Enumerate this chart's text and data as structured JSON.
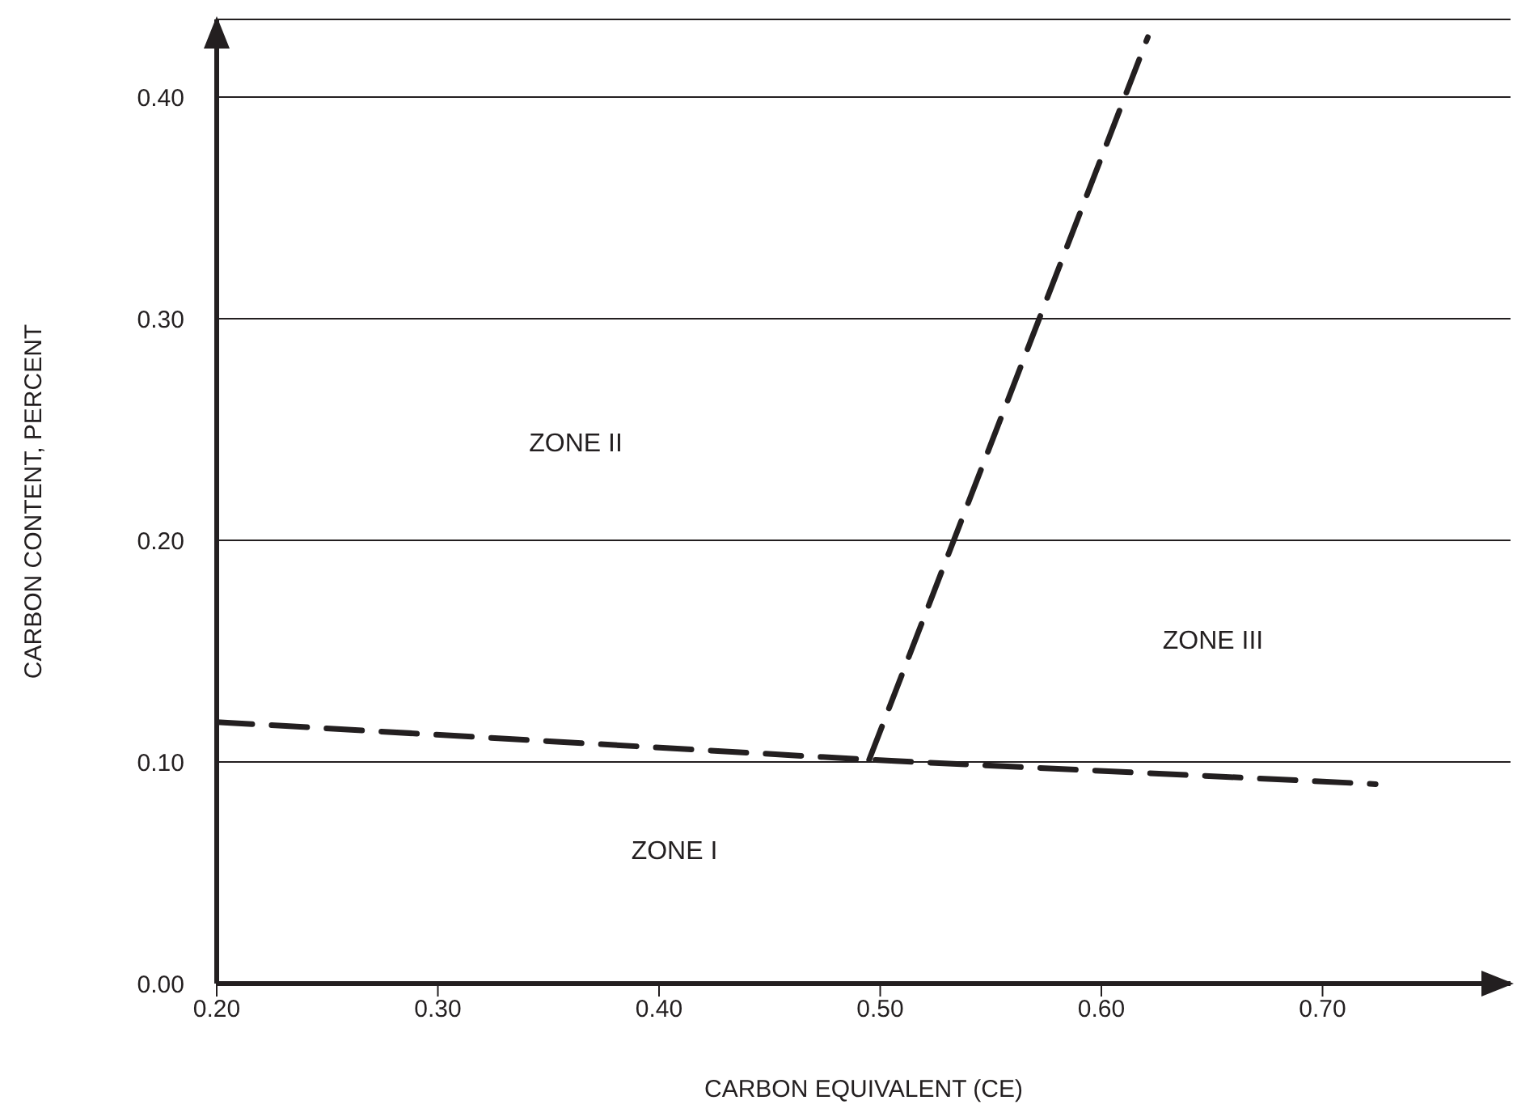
{
  "chart_data": {
    "type": "line",
    "xlabel": "CARBON EQUIVALENT (CE)",
    "ylabel": "CARBON CONTENT, PERCENT",
    "xlim": [
      0.2,
      0.785
    ],
    "ylim": [
      0,
      0.435
    ],
    "xticks": [
      {
        "value": 0.2,
        "label": "0.20"
      },
      {
        "value": 0.3,
        "label": "0.30"
      },
      {
        "value": 0.4,
        "label": "0.40"
      },
      {
        "value": 0.5,
        "label": "0.50"
      },
      {
        "value": 0.6,
        "label": "0.60"
      },
      {
        "value": 0.7,
        "label": "0.70"
      }
    ],
    "yticks": [
      {
        "value": 0,
        "label": "0.00"
      },
      {
        "value": 0.1,
        "label": "0.10"
      },
      {
        "value": 0.2,
        "label": "0.20"
      },
      {
        "value": 0.3,
        "label": "0.30"
      },
      {
        "value": 0.4,
        "label": "0.40"
      }
    ],
    "grid": "y",
    "marker": "none",
    "line_style": "dashed",
    "series": [
      {
        "color": "#231f20",
        "x": [
          0.2,
          0.495,
          0.724
        ],
        "values": [
          0.118,
          0.101,
          0.09
        ]
      },
      {
        "color": "#231f20",
        "x": [
          0.495,
          0.621
        ],
        "values": [
          0.101,
          0.427
        ]
      }
    ],
    "annotations": [
      "ZONE I",
      "ZONE II",
      "ZONE III"
    ]
  }
}
